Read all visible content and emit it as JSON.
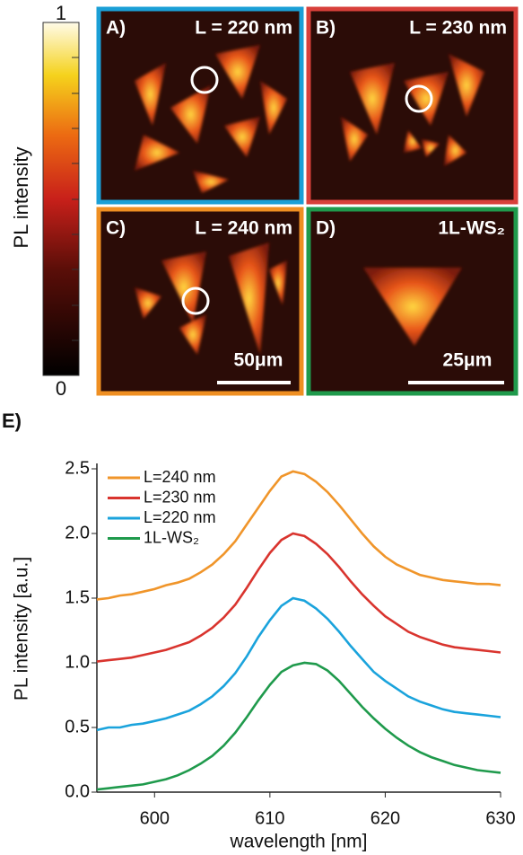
{
  "figure": {
    "colorbar": {
      "label": "PL intensity",
      "ticks": [
        1,
        0
      ]
    },
    "panels": [
      {
        "label": "A)",
        "title": "L = 220 nm",
        "color": "#1a9fd6"
      },
      {
        "label": "B)",
        "title": "L = 230 nm",
        "color": "#d8403a"
      },
      {
        "label": "C)",
        "title": "L = 240 nm",
        "color": "#ef8f22",
        "scale_bar": "50μm"
      },
      {
        "label": "D)",
        "title": "1L-WS₂",
        "color": "#1f9a4c",
        "scale_bar": "25μm"
      }
    ],
    "chart_label": "E)"
  },
  "chart_data": {
    "type": "line",
    "x_label": "wavelength [nm]",
    "y_label": "PL intensity [a.u.]",
    "xlim": [
      595,
      630
    ],
    "ylim": [
      0,
      2.5
    ],
    "xticks": [
      600,
      610,
      620,
      630
    ],
    "yticks": [
      {
        "value": 0,
        "label": "0.0"
      },
      {
        "value": 0.5,
        "label": "0.5"
      },
      {
        "value": 1,
        "label": "1.0"
      },
      {
        "value": 1.5,
        "label": "1.5"
      },
      {
        "value": 2,
        "label": "2.0"
      },
      {
        "value": 2.5,
        "label": "2.5"
      }
    ],
    "legend": "upper left",
    "x": [
      595,
      596,
      597,
      598,
      599,
      600,
      601,
      602,
      603,
      604,
      605,
      606,
      607,
      608,
      609,
      610,
      611,
      612,
      613,
      614,
      615,
      616,
      617,
      618,
      619,
      620,
      621,
      622,
      623,
      624,
      625,
      626,
      627,
      628,
      629,
      630
    ],
    "series": [
      {
        "name": "L=240 nm",
        "color": "#f0952a",
        "values": [
          1.49,
          1.5,
          1.52,
          1.53,
          1.55,
          1.57,
          1.6,
          1.62,
          1.65,
          1.7,
          1.76,
          1.84,
          1.94,
          2.07,
          2.2,
          2.33,
          2.44,
          2.48,
          2.46,
          2.4,
          2.32,
          2.22,
          2.11,
          2.0,
          1.9,
          1.82,
          1.76,
          1.72,
          1.68,
          1.66,
          1.64,
          1.63,
          1.62,
          1.61,
          1.61,
          1.6
        ]
      },
      {
        "name": "L=230 nm",
        "color": "#d9342e",
        "values": [
          1.01,
          1.02,
          1.03,
          1.04,
          1.06,
          1.08,
          1.1,
          1.13,
          1.16,
          1.21,
          1.27,
          1.35,
          1.45,
          1.58,
          1.72,
          1.85,
          1.95,
          2.0,
          1.98,
          1.92,
          1.84,
          1.74,
          1.63,
          1.53,
          1.44,
          1.36,
          1.3,
          1.24,
          1.2,
          1.17,
          1.14,
          1.12,
          1.11,
          1.1,
          1.09,
          1.08
        ]
      },
      {
        "name": "L=220 nm",
        "color": "#1aa3dc",
        "values": [
          0.48,
          0.5,
          0.5,
          0.52,
          0.53,
          0.55,
          0.57,
          0.6,
          0.63,
          0.68,
          0.74,
          0.82,
          0.92,
          1.05,
          1.2,
          1.33,
          1.44,
          1.5,
          1.48,
          1.42,
          1.34,
          1.24,
          1.13,
          1.03,
          0.93,
          0.86,
          0.8,
          0.74,
          0.7,
          0.67,
          0.64,
          0.62,
          0.61,
          0.6,
          0.59,
          0.58
        ]
      },
      {
        "name": "1L-WS₂",
        "color": "#1f9a4c",
        "values": [
          0.02,
          0.03,
          0.04,
          0.05,
          0.06,
          0.08,
          0.1,
          0.13,
          0.17,
          0.22,
          0.28,
          0.36,
          0.46,
          0.58,
          0.71,
          0.83,
          0.93,
          0.98,
          1.0,
          0.99,
          0.94,
          0.86,
          0.76,
          0.66,
          0.57,
          0.49,
          0.42,
          0.36,
          0.31,
          0.27,
          0.24,
          0.21,
          0.19,
          0.17,
          0.16,
          0.15
        ]
      }
    ]
  }
}
